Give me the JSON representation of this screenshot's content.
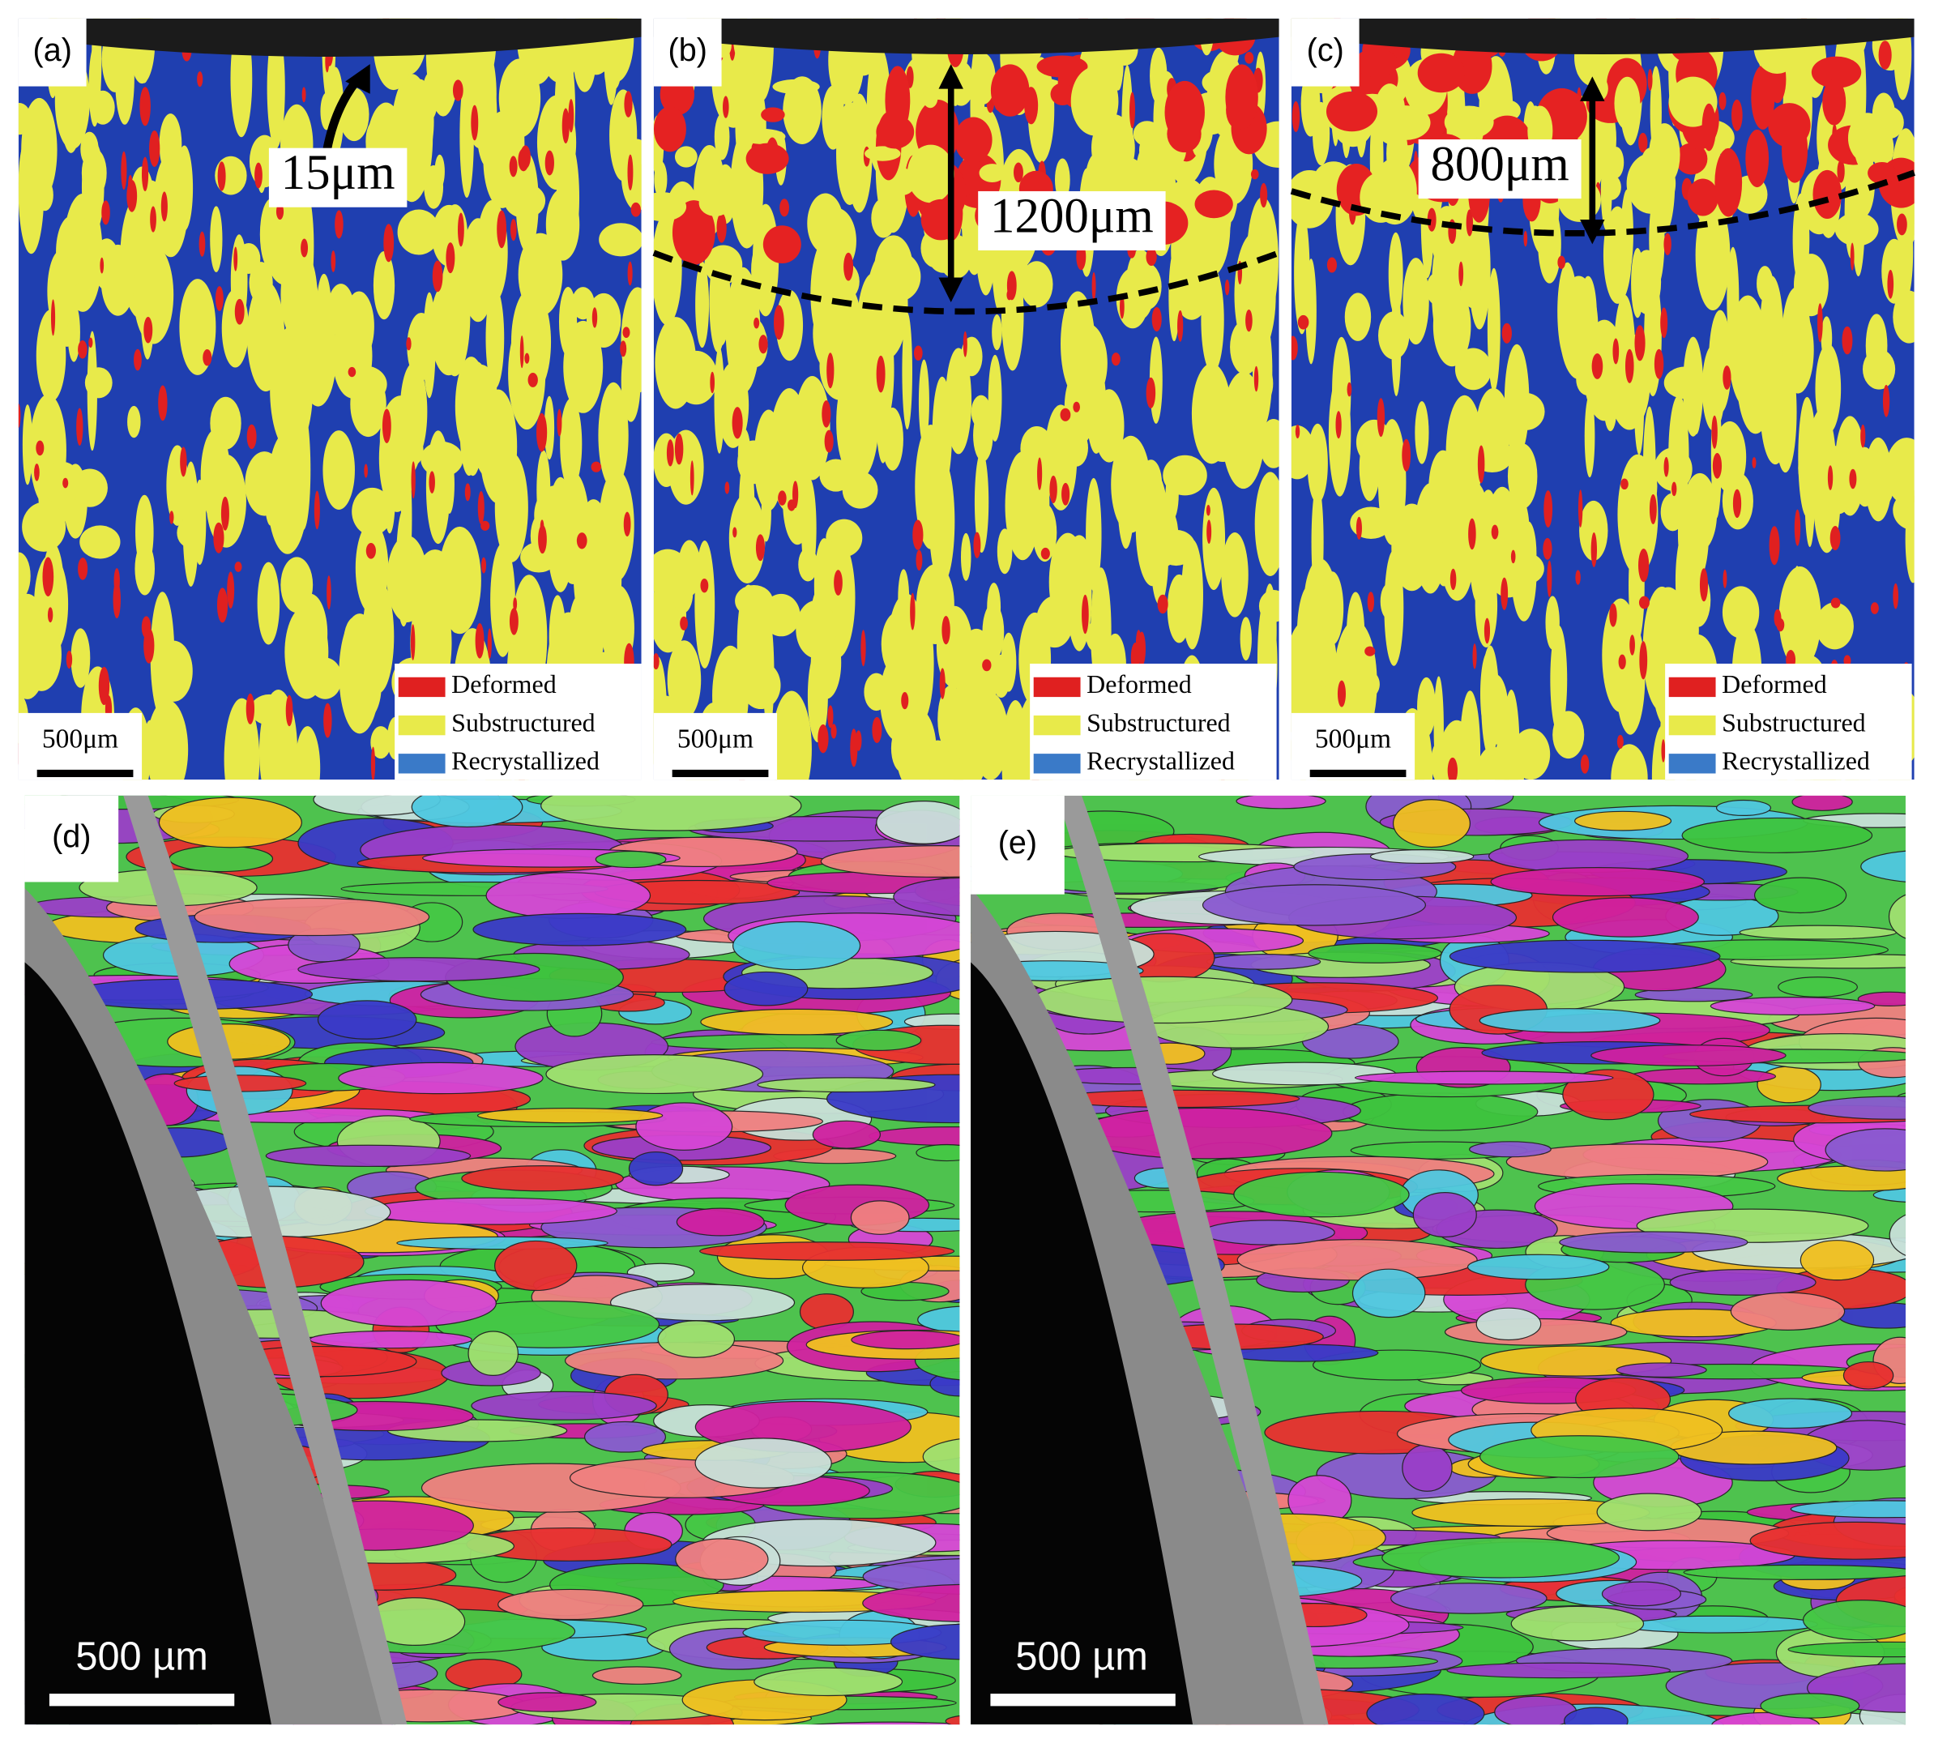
{
  "panels": [
    {
      "label": "(a)",
      "annotation": "15μm",
      "scale_bar": "500μm",
      "legend": [
        "Deformed",
        "Substructured",
        "Recrystallized"
      ]
    },
    {
      "label": "(b)",
      "annotation": "1200μm",
      "scale_bar": "500μm",
      "legend": [
        "Deformed",
        "Substructured",
        "Recrystallized"
      ]
    },
    {
      "label": "(c)",
      "annotation": "800μm",
      "scale_bar": "500μm",
      "legend": [
        "Deformed",
        "Substructured",
        "Recrystallized"
      ]
    },
    {
      "label": "(d)",
      "scale_bar": "500 µm"
    },
    {
      "label": "(e)",
      "scale_bar": "500 µm"
    }
  ]
}
